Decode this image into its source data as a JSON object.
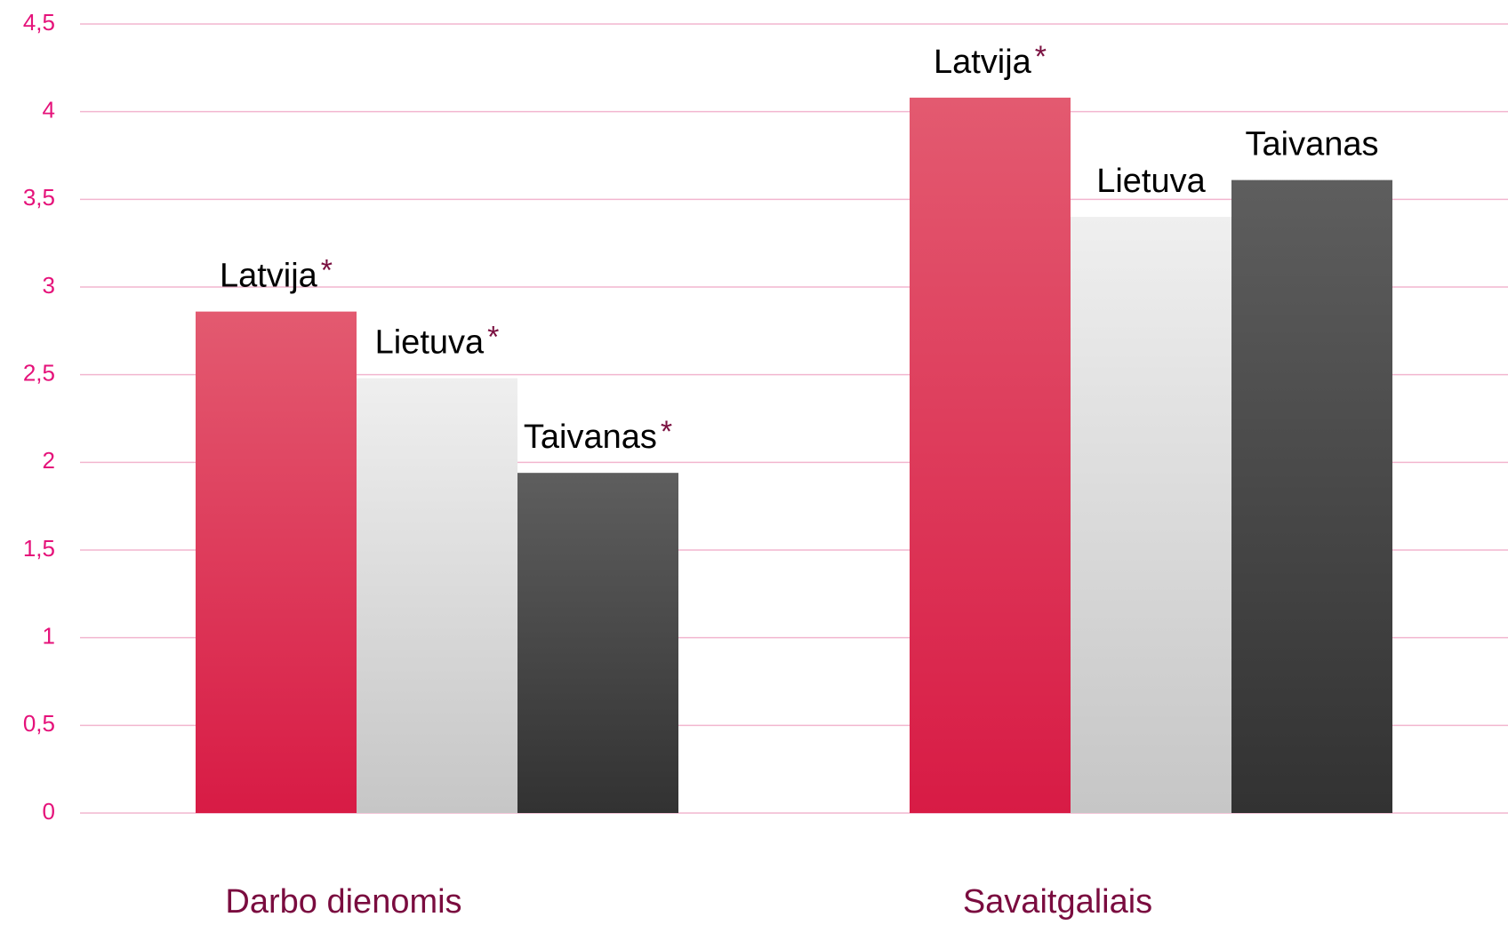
{
  "chart_data": {
    "type": "bar",
    "categories": [
      "Darbo dienomis",
      "Savaitgaliais"
    ],
    "series": [
      {
        "name": "Latvija",
        "color": "#e02a50",
        "gradient": [
          "#e35a70",
          "#d81b45"
        ],
        "values": [
          2.86,
          4.08
        ],
        "significance": [
          "*",
          "*"
        ]
      },
      {
        "name": "Lietuva",
        "color": "#dcdcdc",
        "gradient": [
          "#efefef",
          "#c6c6c6"
        ],
        "values": [
          2.48,
          3.4
        ],
        "significance": [
          "*",
          null
        ]
      },
      {
        "name": "Taivanas",
        "color": "#484848",
        "gradient": [
          "#5e5e5e",
          "#323232"
        ],
        "values": [
          1.94,
          3.61
        ],
        "significance": [
          "*",
          null
        ]
      }
    ],
    "ylim": [
      0,
      4.5
    ],
    "yticks": [
      0,
      {
        "value": 0.5,
        "label": "0,5"
      },
      1,
      {
        "value": 1.5,
        "label": "1,5"
      },
      2,
      {
        "value": 2.5,
        "label": "2,5"
      },
      3,
      {
        "value": 3.5,
        "label": "3,5"
      },
      4,
      {
        "value": 4.5,
        "label": "4,5"
      }
    ],
    "grid": true,
    "grid_color": "#f2b6cf",
    "tick_color": "#e5127a",
    "category_color": "#7a0c3f",
    "significance_color": "#7a1040"
  }
}
